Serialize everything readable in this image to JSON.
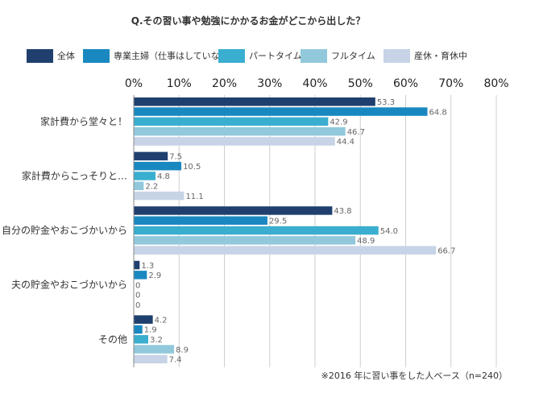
{
  "chart_data": {
    "type": "bar",
    "orientation": "horizontal",
    "title": "Q.その習い事や勉強にかかるお金がどこから出した？",
    "categories": [
      "家計費から堂々と！",
      "家計費からこっそりと…",
      "自分の貯金やおこづかいから",
      "夫の貯金やおこづかいから",
      "その他"
    ],
    "series": [
      {
        "name": "全体",
        "color": "#1f3f6e",
        "values": [
          53.3,
          7.5,
          43.8,
          1.3,
          4.2
        ]
      },
      {
        "name": "専業主婦（仕事はしていない）",
        "color": "#1a88c0",
        "values": [
          64.8,
          10.5,
          29.5,
          2.9,
          1.9
        ]
      },
      {
        "name": "パートタイム",
        "color": "#3aaecf",
        "values": [
          42.9,
          4.8,
          54.0,
          0,
          3.2
        ]
      },
      {
        "name": "フルタイム",
        "color": "#91c8dc",
        "values": [
          46.7,
          2.2,
          48.9,
          0,
          8.9
        ]
      },
      {
        "name": "産休・育休中",
        "color": "#c7d3e6",
        "values": [
          44.4,
          11.1,
          66.7,
          0,
          7.4
        ]
      }
    ],
    "value_labels": [
      [
        "53.3",
        "7.5",
        "43.8",
        "1.3",
        "4.2"
      ],
      [
        "64.8",
        "10.5",
        "29.5",
        "2.9",
        "1.9"
      ],
      [
        "42.9",
        "4.8",
        "54.0",
        "0",
        "3.2"
      ],
      [
        "46.7",
        "2.2",
        "48.9",
        "0",
        "8.9"
      ],
      [
        "44.4",
        "11.1",
        "66.7",
        "0",
        "7.4"
      ]
    ],
    "x_ticks": [
      0,
      10,
      20,
      30,
      40,
      50,
      60,
      70,
      80
    ],
    "tick_labels": [
      "0%",
      "10%",
      "20%",
      "30%",
      "40%",
      "50%",
      "60%",
      "70%",
      "80%"
    ],
    "xlim": [
      0,
      80
    ],
    "grid": true,
    "legend": "top",
    "note": "※2016 年に習い事をした人ベース（n=240）"
  }
}
